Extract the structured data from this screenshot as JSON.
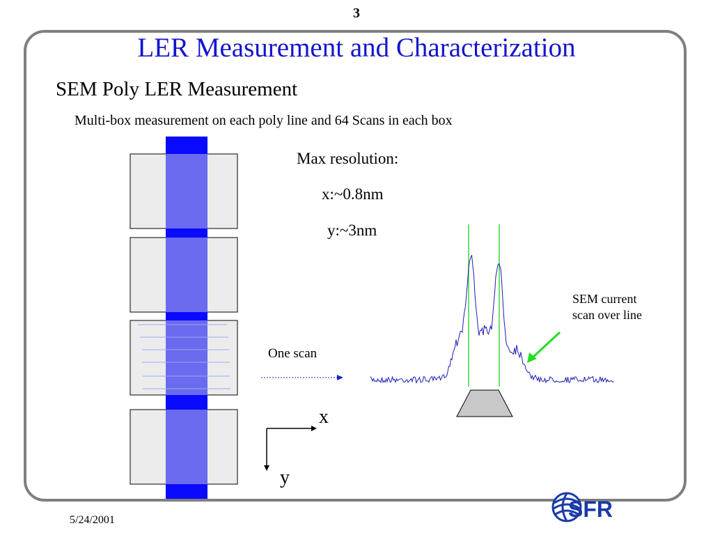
{
  "page_number": "3",
  "title": "LER Measurement and Characterization",
  "subtitle": "SEM Poly LER Measurement",
  "description": "Multi-box measurement on each poly line and 64 Scans in each box",
  "resolution": {
    "heading": "Max resolution:",
    "x": "x:~0.8nm",
    "y": "y:~3nm"
  },
  "scan_label": "One scan",
  "sem_label": {
    "line1": "SEM current",
    "line2": "scan over line"
  },
  "axes": {
    "x": "x",
    "y": "y"
  },
  "footer": {
    "date": "5/24/2001"
  },
  "logo": {
    "text": "SFR",
    "icon": "globe-logo-icon"
  },
  "colors": {
    "title": "#1414cc",
    "frame": "#7f7f7f",
    "poly_line_dark": "#0a0aff",
    "poly_line_light": "#6b6bef",
    "measurement_box": "#ececec",
    "signal": "#1c1cb4",
    "edge_marker": "#3fd43f",
    "pointer_arrow": "#22dd22",
    "logo": "#1a3aa8"
  }
}
